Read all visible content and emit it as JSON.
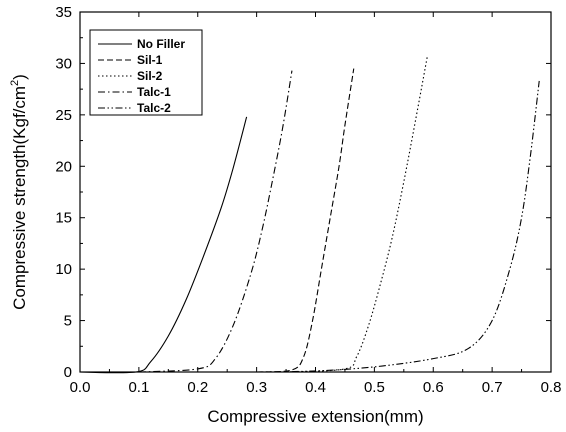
{
  "chart_data": {
    "type": "line",
    "title": "",
    "xlabel": "Compressive extension(mm)",
    "ylabel_main": "Compressive strength(Kgf/cm",
    "ylabel_sup": "2",
    "ylabel_end": ")",
    "xlim": [
      0.0,
      0.8
    ],
    "ylim": [
      0,
      35
    ],
    "xticks": [
      "0.0",
      "0.1",
      "0.2",
      "0.3",
      "0.4",
      "0.5",
      "0.6",
      "0.7",
      "0.8"
    ],
    "yticks": [
      "0",
      "5",
      "10",
      "15",
      "20",
      "25",
      "30",
      "35"
    ],
    "grid": false,
    "legend_position": "top-left",
    "series": [
      {
        "name": "No Filler",
        "dash": "solid",
        "points": [
          [
            0.0,
            0
          ],
          [
            0.095,
            0
          ],
          [
            0.12,
            1
          ],
          [
            0.15,
            3.5
          ],
          [
            0.18,
            7
          ],
          [
            0.21,
            11.3
          ],
          [
            0.24,
            16
          ],
          [
            0.26,
            19.8
          ],
          [
            0.283,
            24.8
          ]
        ]
      },
      {
        "name": "Sil-1",
        "dash": "dash",
        "points": [
          [
            0.3,
            0
          ],
          [
            0.36,
            0.2
          ],
          [
            0.38,
            1.5
          ],
          [
            0.395,
            5
          ],
          [
            0.41,
            10
          ],
          [
            0.425,
            15
          ],
          [
            0.44,
            20
          ],
          [
            0.45,
            24
          ],
          [
            0.465,
            29.5
          ]
        ]
      },
      {
        "name": "Sil-2",
        "dash": "dot",
        "points": [
          [
            0.35,
            0
          ],
          [
            0.45,
            0.3
          ],
          [
            0.47,
            1.5
          ],
          [
            0.49,
            4.5
          ],
          [
            0.51,
            8.5
          ],
          [
            0.53,
            13
          ],
          [
            0.55,
            18.5
          ],
          [
            0.57,
            24.5
          ],
          [
            0.59,
            30.7
          ]
        ]
      },
      {
        "name": "Talc-1",
        "dash": "dashdot",
        "points": [
          [
            0.1,
            0
          ],
          [
            0.2,
            0.3
          ],
          [
            0.23,
            1.3
          ],
          [
            0.26,
            4.5
          ],
          [
            0.29,
            9.5
          ],
          [
            0.31,
            14
          ],
          [
            0.33,
            19.5
          ],
          [
            0.345,
            24
          ],
          [
            0.36,
            29.3
          ]
        ]
      },
      {
        "name": "Talc-2",
        "dash": "dashdotdot",
        "points": [
          [
            0.3,
            0
          ],
          [
            0.4,
            0.1
          ],
          [
            0.5,
            0.5
          ],
          [
            0.6,
            1.3
          ],
          [
            0.66,
            2.3
          ],
          [
            0.7,
            5
          ],
          [
            0.73,
            10
          ],
          [
            0.75,
            15
          ],
          [
            0.765,
            21
          ],
          [
            0.78,
            28.3
          ]
        ]
      }
    ]
  }
}
